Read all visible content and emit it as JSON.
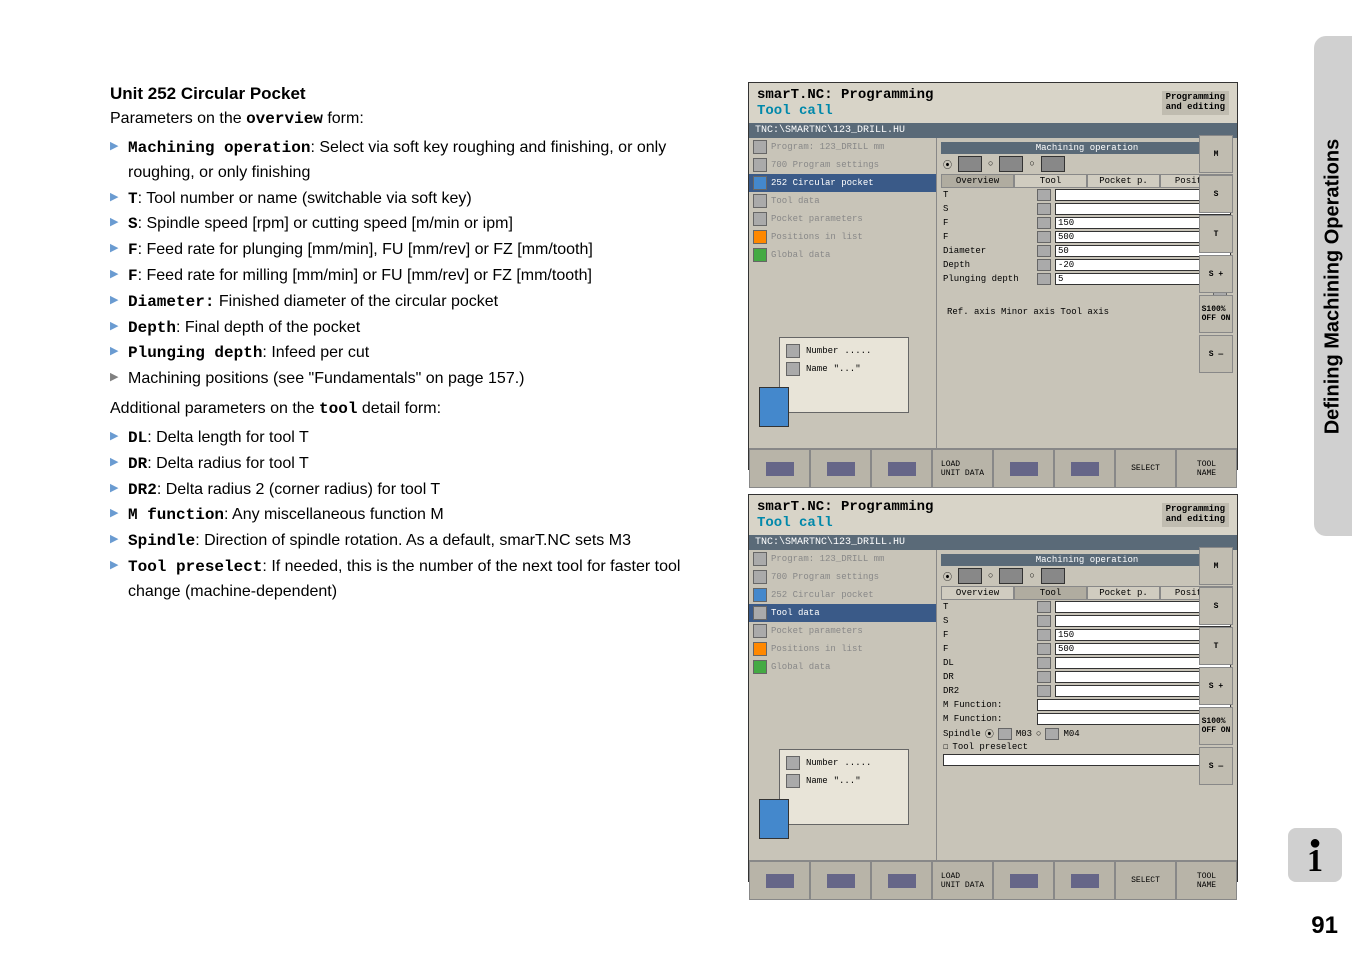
{
  "heading": "Unit 252 Circular Pocket",
  "intro_prefix": "Parameters on the ",
  "intro_bold": "overview",
  "intro_suffix": " form:",
  "overview_items": [
    {
      "bold": "Machining operation",
      "text": ": Select via soft key roughing and finishing, or only roughing, or only finishing",
      "gray": false
    },
    {
      "bold": "T",
      "text": ": Tool number or name (switchable via soft key)",
      "gray": false
    },
    {
      "bold": "S",
      "text": ": Spindle speed [rpm] or cutting speed [m/min or ipm]",
      "gray": false
    },
    {
      "bold": "F",
      "text": ": Feed rate for plunging [mm/min], FU [mm/rev] or FZ [mm/tooth]",
      "gray": false
    },
    {
      "bold": "F",
      "text": ": Feed rate for milling [mm/min] or FU [mm/rev] or FZ [mm/tooth]",
      "gray": false
    },
    {
      "bold": "Diameter:",
      "text": " Finished diameter of the circular pocket",
      "gray": false
    },
    {
      "bold": "Depth",
      "text": ": Final depth of the pocket",
      "gray": false
    },
    {
      "bold": "Plunging depth",
      "text": ": Infeed per cut",
      "gray": false
    },
    {
      "bold": "",
      "text": "Machining positions (see \"Fundamentals\" on page 157.)",
      "gray": true
    }
  ],
  "sub_intro_prefix": "Additional parameters on the ",
  "sub_intro_bold": "tool",
  "sub_intro_suffix": " detail form:",
  "tool_items": [
    {
      "bold": "DL",
      "text": ": Delta length for tool T"
    },
    {
      "bold": "DR",
      "text": ": Delta radius for tool T"
    },
    {
      "bold": "DR2",
      "text": ": Delta radius 2 (corner radius) for tool T"
    },
    {
      "bold": "M function",
      "text": ": Any miscellaneous function M"
    },
    {
      "bold": "Spindle",
      "text": ": Direction of spindle rotation. As a default, smarT.NC sets M3"
    },
    {
      "bold": "Tool preselect",
      "text": ": If needed, this is the number of the next tool for faster tool change (machine-dependent)"
    }
  ],
  "sidebar_text": "Defining Machining Operations",
  "page_number": "91",
  "screenshot1": {
    "title_prefix": "smarT.NC: Programming",
    "title_sub": "Tool call",
    "prog_label": "Programming\nand editing",
    "path": "TNC:\\SMARTNC\\123_DRILL.HU",
    "tree_items": [
      {
        "sel": false,
        "text": "Program: 123_DRILL mm",
        "ico": ""
      },
      {
        "sel": false,
        "text": "700 Program settings",
        "ico": ""
      },
      {
        "sel": true,
        "text": "252 Circular pocket",
        "ico": "blue"
      },
      {
        "sel": false,
        "text": "Tool data",
        "ico": ""
      },
      {
        "sel": false,
        "text": "Pocket parameters",
        "ico": ""
      },
      {
        "sel": false,
        "text": "Positions in list",
        "ico": "orange"
      },
      {
        "sel": false,
        "text": "Global data",
        "ico": "green"
      }
    ],
    "thumb_number": "Number",
    "thumb_name": "Name",
    "thumb_dots": ".....",
    "thumb_quotes": "\"...\"",
    "form_header": "Machining operation",
    "tabs": [
      "Overview",
      "Tool",
      "Pocket p.",
      "Position"
    ],
    "active_tab": 0,
    "rows": [
      {
        "label": "T",
        "value": "",
        "blue": true
      },
      {
        "label": "S",
        "value": ""
      },
      {
        "label": "F",
        "value": "150"
      },
      {
        "label": "F",
        "value": "500"
      },
      {
        "label": "Diameter",
        "value": "50"
      },
      {
        "label": "Depth",
        "value": "-20"
      },
      {
        "label": "Plunging depth",
        "value": "5"
      }
    ],
    "axis_labels": "Ref. axis   Minor axis   Tool axis",
    "right_icons": [
      "M",
      "S",
      "T",
      "S +",
      "S100%\nOFF ON",
      "S —"
    ],
    "softkeys": [
      "",
      "",
      "",
      "LOAD\nUNIT DATA",
      "",
      "",
      "SELECT",
      "TOOL\nNAME"
    ]
  },
  "screenshot2": {
    "title_prefix": "smarT.NC: Programming",
    "title_sub": "Tool call",
    "prog_label": "Programming\nand editing",
    "path": "TNC:\\SMARTNC\\123_DRILL.HU",
    "tree_items": [
      {
        "sel": false,
        "text": "Program: 123_DRILL mm",
        "ico": ""
      },
      {
        "sel": false,
        "text": "700 Program settings",
        "ico": ""
      },
      {
        "sel": false,
        "text": "252 Circular pocket",
        "ico": "blue"
      },
      {
        "sel": true,
        "text": "Tool data",
        "ico": ""
      },
      {
        "sel": false,
        "text": "Pocket parameters",
        "ico": ""
      },
      {
        "sel": false,
        "text": "Positions in list",
        "ico": "orange"
      },
      {
        "sel": false,
        "text": "Global data",
        "ico": "green"
      }
    ],
    "thumb_number": "Number",
    "thumb_name": "Name",
    "thumb_dots": ".....",
    "thumb_quotes": "\"...\"",
    "form_header": "Machining operation",
    "tabs": [
      "Overview",
      "Tool",
      "Pocket p.",
      "Position"
    ],
    "active_tab": 1,
    "rows": [
      {
        "label": "T",
        "value": "",
        "blue": true
      },
      {
        "label": "S",
        "value": ""
      },
      {
        "label": "F",
        "value": "150"
      },
      {
        "label": "F",
        "value": "500"
      },
      {
        "label": "DL",
        "value": ""
      },
      {
        "label": "DR",
        "value": ""
      },
      {
        "label": "DR2",
        "value": ""
      }
    ],
    "mfunc1": "M Function:",
    "mfunc2": "M Function:",
    "spindle": "Spindle",
    "m03": "M03",
    "m04": "M04",
    "tool_preselect": "Tool preselect",
    "right_icons": [
      "M",
      "S",
      "T",
      "S +",
      "S100%\nOFF ON",
      "S —"
    ],
    "softkeys": [
      "",
      "",
      "",
      "LOAD\nUNIT DATA",
      "",
      "",
      "SELECT",
      "TOOL\nNAME"
    ]
  }
}
